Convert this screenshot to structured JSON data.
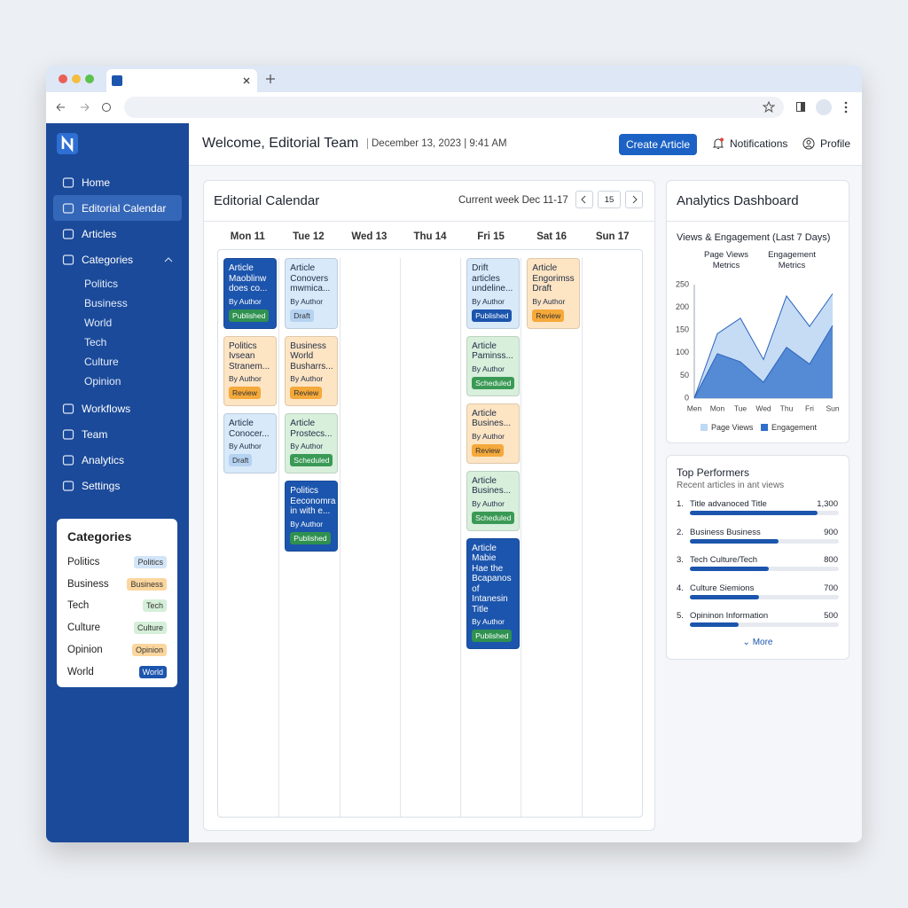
{
  "header": {
    "title": "Welcome, Editorial Team",
    "datetime": "December 13, 2023 | 9:41 AM",
    "create_button": "Create Article",
    "notifications": "Notifications",
    "profile": "Profile"
  },
  "sidebar": {
    "nav": [
      {
        "label": "Home"
      },
      {
        "label": "Editorial Calendar",
        "active": true
      },
      {
        "label": "Articles"
      },
      {
        "label": "Categories",
        "children": [
          "Politics",
          "Business",
          "World",
          "Tech",
          "Culture",
          "Opinion"
        ]
      },
      {
        "label": "Workflows"
      },
      {
        "label": "Team"
      },
      {
        "label": "Analytics"
      },
      {
        "label": "Settings"
      }
    ]
  },
  "categories_card": {
    "title": "Categories",
    "items": [
      {
        "name": "Politics",
        "badge": "Politics",
        "color": "#d3e5f8"
      },
      {
        "name": "Business",
        "badge": "Business",
        "color": "#fbd69e"
      },
      {
        "name": "Tech",
        "badge": "Tech",
        "color": "#d5efd9"
      },
      {
        "name": "Culture",
        "badge": "Culture",
        "color": "#d5efd9"
      },
      {
        "name": "Opinion",
        "badge": "Opinion",
        "color": "#fbd69e"
      },
      {
        "name": "World",
        "badge": "World",
        "color": "#1c55ad"
      }
    ]
  },
  "calendar": {
    "title": "Editorial Calendar",
    "week_label": "Current week Dec 11-17",
    "today": "15",
    "days": [
      "Mon 11",
      "Tue 12",
      "Wed 13",
      "Thu 14",
      "Fri 15",
      "Sat 16",
      "Sun 17"
    ],
    "cards": [
      [
        {
          "title": "Article Maoblinw does co...",
          "author": "By Author",
          "status": "Published",
          "color": "#1c55ad",
          "badge_color": "#2f9150"
        },
        {
          "title": "Politics Ivsean Stranem...",
          "author": "By Author",
          "status": "Review",
          "color": "#fde4c3",
          "badge_color": "#f5a93a"
        },
        {
          "title": "Article Conocer...",
          "author": "By Author",
          "status": "Draft",
          "color": "#d8e9fa",
          "badge_color": "#b5d2f1"
        }
      ],
      [
        {
          "title": "Article Conovers mwmica...",
          "author": "By Author",
          "status": "Draft",
          "color": "#d8e9fa",
          "badge_color": "#b5d2f1"
        },
        {
          "title": "Business World Busharrs...",
          "author": "By Author",
          "status": "Review",
          "color": "#fde4c3",
          "badge_color": "#f5a93a"
        },
        {
          "title": "Article Prostecs...",
          "author": "By Author",
          "status": "Scheduled",
          "color": "#d8efdc",
          "badge_color": "#3a9a55"
        },
        {
          "title": "Politics Eeconomra in with e...",
          "author": "By Author",
          "status": "Published",
          "color": "#1c55ad",
          "badge_color": "#2f9150"
        }
      ],
      [],
      [],
      [
        {
          "title": "Drift articles undeline...",
          "author": "By Author",
          "status": "Published",
          "color": "#d8e9fa",
          "badge_color": "#1c55ad"
        },
        {
          "title": "Article Paminss...",
          "author": "By Author",
          "status": "Scheduled",
          "color": "#d8efdc",
          "badge_color": "#3a9a55"
        },
        {
          "title": "Article Busines...",
          "author": "By Author",
          "status": "Review",
          "color": "#fde4c3",
          "badge_color": "#f5a93a"
        },
        {
          "title": "Article Busines...",
          "author": "By Author",
          "status": "Scheduled",
          "color": "#d8efdc",
          "badge_color": "#3a9a55"
        },
        {
          "title": "Article Mabie Hae the Bcapanos of Intanesin Title",
          "author": "By Author",
          "status": "Published",
          "color": "#1c55ad",
          "badge_color": "#2f9150"
        }
      ],
      [
        {
          "title": "Article Engorimss Draft",
          "author": "By Author",
          "status": "Review",
          "color": "#fde4c3",
          "badge_color": "#f5a93a"
        }
      ],
      []
    ]
  },
  "analytics": {
    "title": "Analytics Dashboard",
    "chart": {
      "type": "area",
      "title": "Views & Engagement (Last 7 Days)",
      "legend_headers": [
        "Page Views Metrics",
        "Engagement Metrics"
      ],
      "categories": [
        "Men",
        "Mon",
        "Tue",
        "Wed",
        "Thu",
        "Fri",
        "Sun"
      ],
      "series": [
        {
          "name": "Page Views",
          "color": "#bfd8f3",
          "values": [
            0,
            142,
            176,
            85,
            225,
            158,
            230
          ]
        },
        {
          "name": "Engagement",
          "color": "#2f6fc9",
          "values": [
            0,
            98,
            80,
            35,
            112,
            75,
            160
          ]
        }
      ],
      "ylim": [
        0,
        250
      ],
      "yticks": [
        0,
        50,
        100,
        150,
        200,
        250
      ],
      "grid": false
    }
  },
  "top_performers": {
    "title": "Top Performers",
    "subtitle": "Recent articles in ant views",
    "bar_color": "#1c55ad",
    "items": [
      {
        "rank": "1.",
        "title": "Title advanoced Title",
        "value": 1300,
        "value_label": "1,300"
      },
      {
        "rank": "2.",
        "title": "Business Business",
        "value": 900
      },
      {
        "rank": "3.",
        "title": "Tech Culture/Tech",
        "value": 800
      },
      {
        "rank": "4.",
        "title": "Culture Siemions",
        "value": 700
      },
      {
        "rank": "5.",
        "title": "Opininon Information",
        "value": 500
      }
    ],
    "more": "More"
  }
}
